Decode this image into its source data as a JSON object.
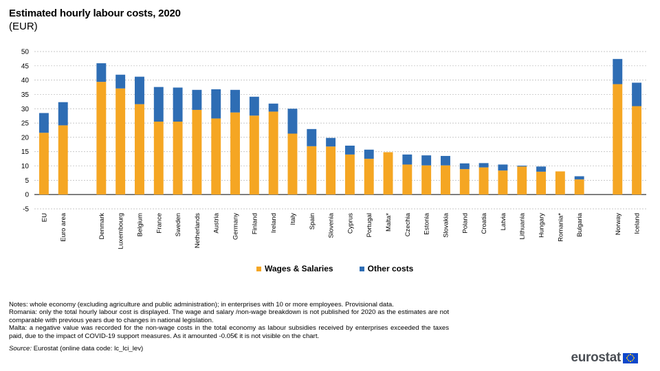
{
  "header": {
    "title": "Estimated hourly labour costs, 2020",
    "subtitle": "(EUR)"
  },
  "chart_data": {
    "type": "bar",
    "stacked": true,
    "title": "Estimated hourly labour costs, 2020",
    "subtitle": "(EUR)",
    "ylim": [
      -5,
      50
    ],
    "yticks": [
      -5,
      0,
      5,
      10,
      15,
      20,
      25,
      30,
      35,
      40,
      45,
      50
    ],
    "grid": true,
    "legend_position": "bottom",
    "categories": [
      "EU",
      "Euro area",
      "",
      "Denmark",
      "Luxembourg",
      "Belgium",
      "France",
      "Sweden",
      "Netherlands",
      "Austria",
      "Germany",
      "Finland",
      "Ireland",
      "Italy",
      "Spain",
      "Slovenia",
      "Cyprus",
      "Portugal",
      "Malta*",
      "Czechia",
      "Estonia",
      "Slovakia",
      "Poland",
      "Croatia",
      "Latvia",
      "Lithuania",
      "Hungary",
      "Romania*",
      "Bulgaria",
      "",
      "Norway",
      "Iceland"
    ],
    "series": [
      {
        "name": "Wages & Salaries",
        "color": "#f5a623",
        "values": [
          21.6,
          24.2,
          null,
          39.4,
          37.1,
          31.6,
          25.5,
          25.5,
          29.6,
          26.6,
          28.7,
          27.6,
          29.0,
          21.3,
          16.9,
          16.8,
          14.0,
          12.5,
          14.8,
          10.5,
          10.2,
          10.2,
          8.9,
          9.5,
          8.4,
          9.8,
          8.0,
          8.1,
          5.3,
          null,
          38.6,
          30.9
        ]
      },
      {
        "name": "Other costs",
        "color": "#2e6db4",
        "values": [
          6.9,
          8.1,
          null,
          6.5,
          4.8,
          9.6,
          12.1,
          11.9,
          7.0,
          10.2,
          7.9,
          6.6,
          2.8,
          8.7,
          6.0,
          3.0,
          3.1,
          3.2,
          0,
          3.5,
          3.5,
          3.3,
          2.0,
          1.5,
          2.1,
          0.3,
          1.8,
          0,
          1.1,
          null,
          8.8,
          8.2
        ]
      }
    ]
  },
  "legend": {
    "items": [
      {
        "label": "Wages & Salaries",
        "color": "#f5a623"
      },
      {
        "label": "Other costs",
        "color": "#2e6db4"
      }
    ]
  },
  "notes": {
    "line1": "Notes: whole economy (excluding agriculture and public administration); in enterprises with 10 or more employees. Provisional data.",
    "line2": "Romania: only the total hourly labour cost is displayed. The wage and salary /non-wage breakdown is not published for 2020 as the estimates are not comparable with previous  years due to changes in national legislation.",
    "line3": "Malta: a negative value was recorded for the non-wage costs in the total economy as labour subsidies received by enterprises exceeded the taxes paid, due to the impact of COVID-19 support measures. As it amounted -0.05€ it is not visible on the chart.",
    "source_label": "Source:",
    "source_text": " Eurostat (online data code: lc_lci_lev)"
  },
  "logo": {
    "text": "eurostat"
  }
}
